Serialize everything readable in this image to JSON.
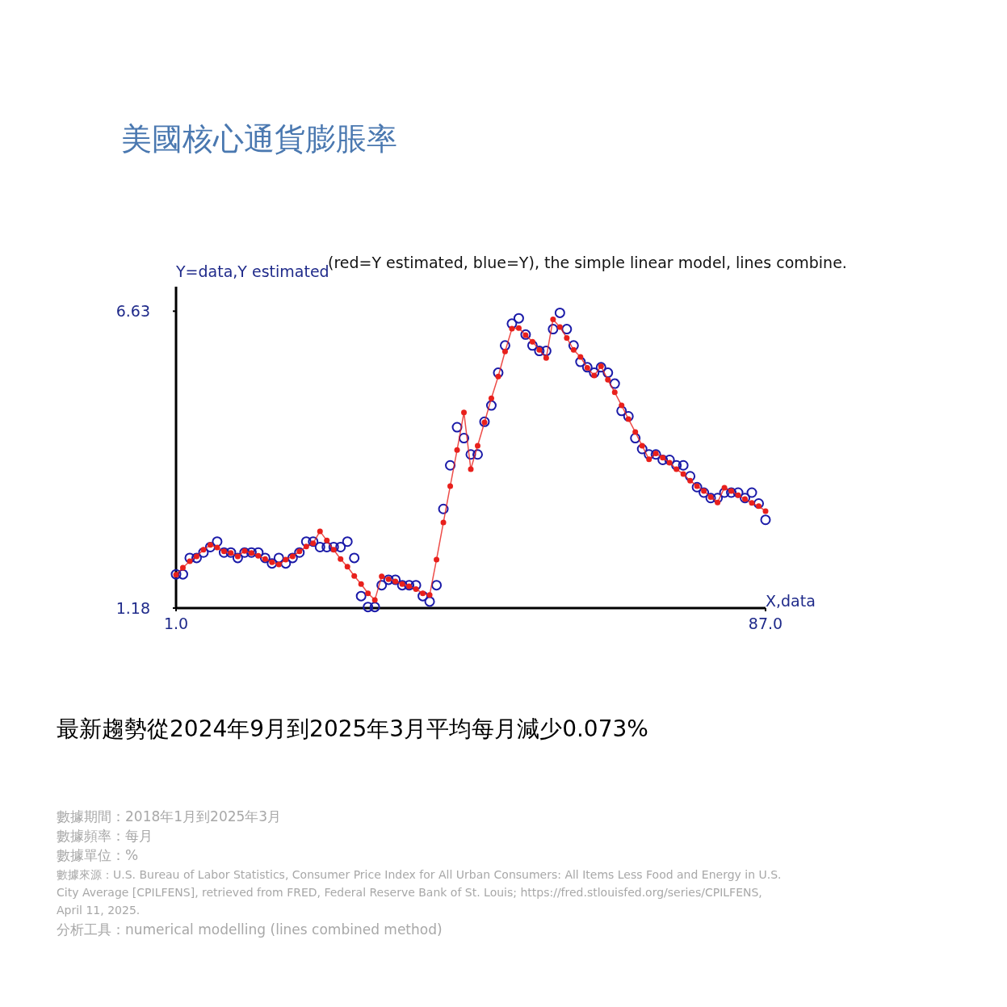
{
  "chart_data": {
    "type": "line",
    "title": "美國核心通貨膨脹率",
    "subtitle": "(red=Y estimated, blue=Y), the simple linear model, lines combine.",
    "xlabel": "X,data",
    "ylabel": "Y=data,Y estimated",
    "x": [
      1,
      2,
      3,
      4,
      5,
      6,
      7,
      8,
      9,
      10,
      11,
      12,
      13,
      14,
      15,
      16,
      17,
      18,
      19,
      20,
      21,
      22,
      23,
      24,
      25,
      26,
      27,
      28,
      29,
      30,
      31,
      32,
      33,
      34,
      35,
      36,
      37,
      38,
      39,
      40,
      41,
      42,
      43,
      44,
      45,
      46,
      47,
      48,
      49,
      50,
      51,
      52,
      53,
      54,
      55,
      56,
      57,
      58,
      59,
      60,
      61,
      62,
      63,
      64,
      65,
      66,
      67,
      68,
      69,
      70,
      71,
      72,
      73,
      74,
      75,
      76,
      77,
      78,
      79,
      80,
      81,
      82,
      83,
      84,
      85,
      86,
      87
    ],
    "xlim": [
      1,
      87
    ],
    "ylim": [
      1.18,
      7.08
    ],
    "xticks": [
      {
        "value": 1,
        "label": "1.0"
      },
      {
        "value": 87,
        "label": "87.0"
      }
    ],
    "yticks": [
      6.63,
      1.18
    ],
    "marker": "circle",
    "series": [
      {
        "color": "#e8201c",
        "values": [
          1.79,
          1.92,
          2.04,
          2.13,
          2.25,
          2.34,
          2.29,
          2.22,
          2.19,
          2.13,
          2.23,
          2.19,
          2.14,
          2.08,
          2.02,
          1.98,
          2.07,
          2.13,
          2.22,
          2.31,
          2.37,
          2.59,
          2.42,
          2.25,
          2.08,
          1.94,
          1.77,
          1.62,
          1.45,
          1.33,
          1.76,
          1.71,
          1.67,
          1.62,
          1.58,
          1.53,
          1.45,
          1.42,
          2.07,
          2.75,
          3.42,
          4.08,
          4.77,
          3.73,
          4.16,
          4.59,
          5.03,
          5.43,
          5.89,
          6.31,
          6.32,
          6.19,
          6.07,
          5.92,
          5.77,
          6.48,
          6.34,
          6.14,
          5.92,
          5.79,
          5.59,
          5.45,
          5.62,
          5.37,
          5.14,
          4.9,
          4.65,
          4.41,
          4.16,
          3.91,
          4.02,
          3.94,
          3.85,
          3.73,
          3.64,
          3.52,
          3.42,
          3.33,
          3.22,
          3.12,
          3.39,
          3.33,
          3.25,
          3.18,
          3.11,
          3.05,
          2.96
        ]
      },
      {
        "type": "scatter",
        "color": "#1a1aa8",
        "values": [
          1.8,
          1.8,
          2.1,
          2.1,
          2.2,
          2.3,
          2.4,
          2.2,
          2.2,
          2.1,
          2.2,
          2.2,
          2.2,
          2.1,
          2.0,
          2.1,
          2.0,
          2.1,
          2.2,
          2.4,
          2.4,
          2.3,
          2.3,
          2.3,
          2.3,
          2.4,
          2.1,
          1.4,
          1.2,
          1.2,
          1.6,
          1.7,
          1.7,
          1.6,
          1.6,
          1.6,
          1.4,
          1.3,
          1.6,
          3.0,
          3.8,
          4.5,
          4.3,
          4.0,
          4.0,
          4.6,
          4.9,
          5.5,
          6.0,
          6.4,
          6.5,
          6.2,
          6.0,
          5.9,
          5.9,
          6.3,
          6.6,
          6.3,
          6.0,
          5.7,
          5.6,
          5.5,
          5.6,
          5.5,
          5.3,
          4.8,
          4.7,
          4.3,
          4.1,
          4.0,
          4.0,
          3.9,
          3.9,
          3.8,
          3.8,
          3.6,
          3.4,
          3.3,
          3.2,
          3.2,
          3.3,
          3.3,
          3.3,
          3.2,
          3.3,
          3.1,
          2.8
        ]
      }
    ],
    "annotations": [
      "最新趨勢從2024年9月到2025年3月平均每月減少0.073%",
      "數據期間：2018年1月到2025年3月",
      "數據頻率：每月",
      "數據單位：%",
      "數據來源：U.S. Bureau of Labor Statistics, Consumer Price Index for All Urban Consumers: All Items Less Food and Energy in U.S. City Average [CPILFENS], retrieved from FRED, Federal Reserve Bank of St. Louis; https://fred.stlouisfed.org/series/CPILFENS, April 11, 2025.",
      "分析工具：numerical modelling (lines combined method)"
    ]
  }
}
